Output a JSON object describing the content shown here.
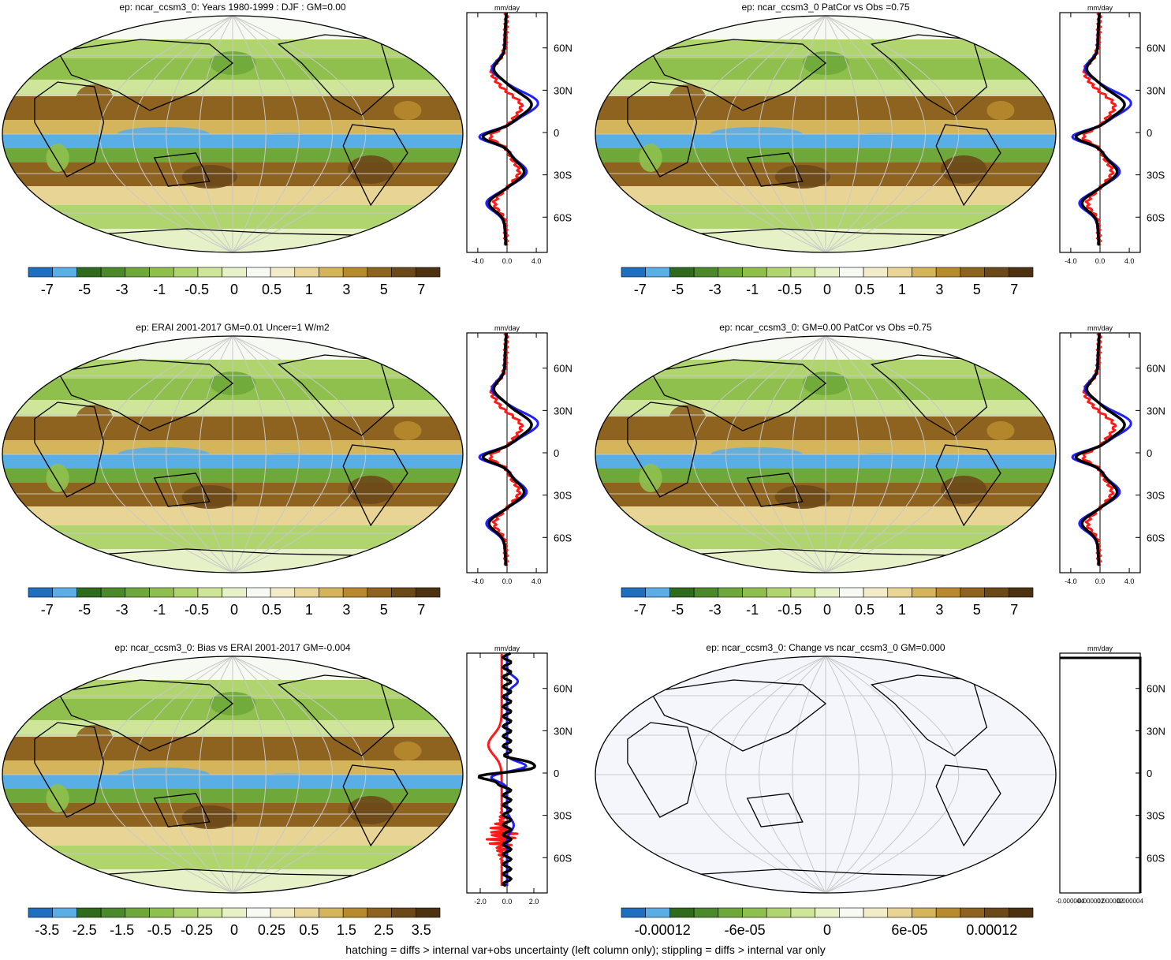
{
  "footer": "hatching = diffs > internal var+obs uncertainty (left column only); stippling = diffs > internal var only",
  "colors": {
    "scale": [
      "#1e6fbf",
      "#5aaee6",
      "#2f6a1d",
      "#4a8a2a",
      "#6ea83a",
      "#8fc04e",
      "#b0d46e",
      "#cfe59a",
      "#e6f1c8",
      "#f7f9f3",
      "#f3ecc9",
      "#e8d596",
      "#d5b55b",
      "#b88a2e",
      "#8e6320",
      "#6b4818",
      "#4c3210"
    ],
    "model": "#000000",
    "obs1": "#1f1fff",
    "obs2": "#ff1a1a"
  },
  "panels": [
    {
      "id": "p1",
      "title": "ep: ncar_ccsm3_0: Years 1980-1999 : DJF : GM=0.00",
      "colorbar_labels": [
        "-7",
        "-5",
        "-3",
        "-1",
        "-0.5",
        "0",
        "0.5",
        "1",
        "3",
        "5",
        "7"
      ],
      "zonal": {
        "unit": "mm/day",
        "xticks": [
          "-4.0",
          "0.0",
          "4.0"
        ],
        "xlim": [
          -5.5,
          5.5
        ],
        "yticks": [
          "60N",
          "30N",
          "0",
          "30S",
          "60S"
        ]
      },
      "lines": "full"
    },
    {
      "id": "p2",
      "title": "ep: ncar_ccsm3_0 PatCor vs Obs =0.75",
      "colorbar_labels": [
        "-7",
        "-5",
        "-3",
        "-1",
        "-0.5",
        "0",
        "0.5",
        "1",
        "3",
        "5",
        "7"
      ],
      "zonal": {
        "unit": "mm/day",
        "xticks": [
          "-4.0",
          "0.0",
          "4.0"
        ],
        "xlim": [
          -5.5,
          5.5
        ],
        "yticks": [
          "60N",
          "30N",
          "0",
          "30S",
          "60S"
        ]
      },
      "lines": "full"
    },
    {
      "id": "p3",
      "title": "ep: ERAI 2001-2017 GM=0.01 Uncer=1 W/m2",
      "colorbar_labels": [
        "-7",
        "-5",
        "-3",
        "-1",
        "-0.5",
        "0",
        "0.5",
        "1",
        "3",
        "5",
        "7"
      ],
      "zonal": {
        "unit": "mm/day",
        "xticks": [
          "-4.0",
          "0.0",
          "4.0"
        ],
        "xlim": [
          -5.5,
          5.5
        ],
        "yticks": [
          "60N",
          "30N",
          "0",
          "30S",
          "60S"
        ]
      },
      "lines": "full"
    },
    {
      "id": "p4",
      "title": "ep: ncar_ccsm3_0: GM=0.00 PatCor vs Obs =0.75",
      "colorbar_labels": [
        "-7",
        "-5",
        "-3",
        "-1",
        "-0.5",
        "0",
        "0.5",
        "1",
        "3",
        "5",
        "7"
      ],
      "zonal": {
        "unit": "mm/day",
        "xticks": [
          "-4.0",
          "0.0",
          "4.0"
        ],
        "xlim": [
          -5.5,
          5.5
        ],
        "yticks": [
          "60N",
          "30N",
          "0",
          "30S",
          "60S"
        ]
      },
      "lines": "full"
    },
    {
      "id": "p5",
      "title": "ep: ncar_ccsm3_0: Bias vs ERAI 2001-2017 GM=-0.004",
      "colorbar_labels": [
        "-3.5",
        "-2.5",
        "-1.5",
        "-0.5",
        "-0.25",
        "0",
        "0.25",
        "0.5",
        "1.5",
        "2.5",
        "3.5"
      ],
      "zonal": {
        "unit": "mm/day",
        "xticks": [
          "-2.0",
          "0.0",
          "2.0"
        ],
        "xlim": [
          -3,
          3
        ],
        "yticks": [
          "60N",
          "30N",
          "0",
          "30S",
          "60S"
        ]
      },
      "lines": "bias"
    },
    {
      "id": "p6",
      "title": "ep: ncar_ccsm3_0: Change vs ncar_ccsm3_0 GM=0.000",
      "colorbar_labels": [
        "-0.00012",
        "-6e-05",
        "0",
        "6e-05",
        "0.00012"
      ],
      "zonal": {
        "unit": "mm/day",
        "xticks": [
          "-0.000004",
          "-0.000002",
          "0.000002",
          "0.000004"
        ],
        "xlim": [
          -5,
          5
        ],
        "yticks": [
          "60N",
          "30N",
          "0",
          "30S",
          "60S"
        ]
      },
      "lines": "none"
    }
  ]
}
